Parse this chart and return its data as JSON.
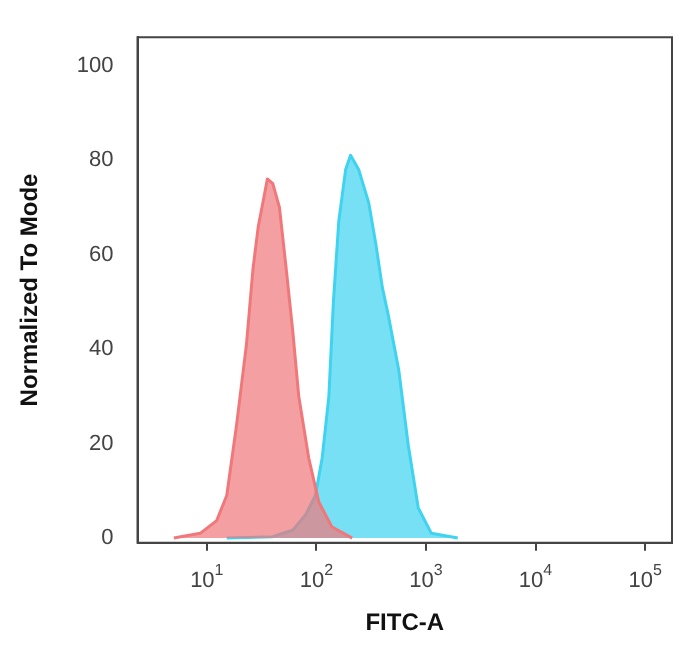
{
  "chart_data": {
    "type": "area",
    "xlabel": "FITC-A",
    "ylabel": "Normalized To Mode",
    "log": "x",
    "grid": false,
    "legend": false,
    "xlim": [
      2.33,
      176000
    ],
    "ylim": [
      -1,
      106
    ],
    "xticks": [
      {
        "value": 10,
        "label": "10$^{1}$"
      },
      {
        "value": 100,
        "label": "10$^{2}$"
      },
      {
        "value": 1000,
        "label": "10$^{3}$"
      },
      {
        "value": 10000,
        "label": "10$^{4}$"
      },
      {
        "value": 100000,
        "label": "10$^{5}$"
      }
    ],
    "yticks": [
      0,
      20,
      40,
      60,
      80,
      100
    ],
    "series": [
      {
        "color": "#f0787a",
        "x": [
          5,
          8.7,
          12.3,
          15.2,
          18.7,
          23,
          26.4,
          29.5,
          32.5,
          35.7,
          40,
          46,
          53,
          61,
          69,
          85,
          105,
          138,
          212
        ],
        "values": [
          0,
          1,
          3.7,
          9,
          24,
          41,
          57,
          66,
          71,
          76,
          75,
          70,
          57,
          43.5,
          30,
          17,
          7.7,
          2.4,
          0
        ]
      },
      {
        "color": "#3fd3f0",
        "x": [
          15.2,
          40,
          61,
          80,
          98,
          113,
          130,
          143,
          160,
          185,
          205,
          243,
          300,
          350,
          400,
          450,
          565,
          690,
          850,
          1120,
          1950
        ],
        "values": [
          0,
          0.3,
          1.7,
          5,
          9,
          17,
          30,
          50,
          67,
          78,
          81,
          78,
          71,
          62,
          53,
          47.5,
          35.5,
          19.6,
          6.4,
          1,
          0
        ]
      }
    ]
  }
}
